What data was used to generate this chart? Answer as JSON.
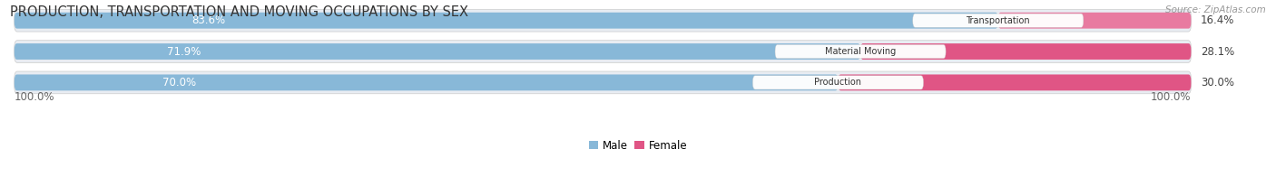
{
  "title": "PRODUCTION, TRANSPORTATION AND MOVING OCCUPATIONS BY SEX",
  "source": "Source: ZipAtlas.com",
  "categories": [
    "Transportation",
    "Material Moving",
    "Production"
  ],
  "male_pct": [
    83.6,
    71.9,
    70.0
  ],
  "female_pct": [
    16.4,
    28.1,
    30.0
  ],
  "male_color": "#88b8d8",
  "female_color": "#e87aa0",
  "female_color_bright": "#e05585",
  "row_bg_color": "#e8ecf2",
  "label_color_male": "#ffffff",
  "label_color_female": "#444444",
  "cat_label_color": "#333333",
  "axis_label": "100.0%",
  "legend_male": "Male",
  "legend_female": "Female",
  "title_fontsize": 10.5,
  "label_fontsize": 8.5,
  "tick_fontsize": 8.5,
  "source_fontsize": 7.5
}
